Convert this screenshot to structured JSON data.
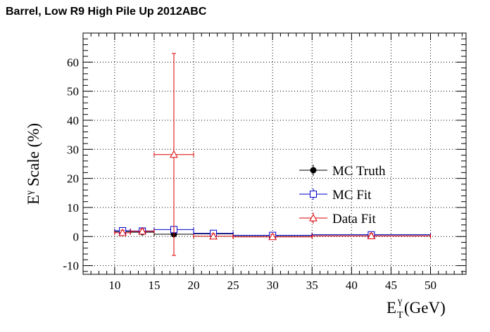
{
  "chart_data": {
    "type": "scatter",
    "title": "Barrel, Low R9 High Pile Up 2012ABC",
    "xlabel": {
      "base": "E",
      "sub": "T",
      "sup": "γ",
      "unit": " (GeV)"
    },
    "ylabel": {
      "base": "E",
      "sup": "γ",
      "rest": " Scale (%)"
    },
    "xlim": [
      6,
      54.5
    ],
    "ylim": [
      -13,
      70
    ],
    "xticks": [
      10,
      15,
      20,
      25,
      30,
      35,
      40,
      45,
      50
    ],
    "yticks": [
      -10,
      0,
      10,
      20,
      30,
      40,
      50,
      60
    ],
    "grid": true,
    "legend_position": "center-right",
    "series": [
      {
        "name": "MC Truth",
        "marker": "circle-filled",
        "color": "#000000",
        "points": [
          {
            "x": 11,
            "xlo": 10,
            "xhi": 12,
            "y": 1.7,
            "ylo": 1.2,
            "yhi": 2.2
          },
          {
            "x": 13.5,
            "xlo": 12,
            "xhi": 15,
            "y": 1.5,
            "ylo": 1.0,
            "yhi": 2.0
          },
          {
            "x": 17.5,
            "xlo": 15,
            "xhi": 20,
            "y": 0.8,
            "ylo": 0.3,
            "yhi": 1.3
          },
          {
            "x": 22.5,
            "xlo": 20,
            "xhi": 25,
            "y": 0.9,
            "ylo": 0.4,
            "yhi": 1.4
          },
          {
            "x": 30,
            "xlo": 25,
            "xhi": 35,
            "y": 0.3,
            "ylo": -0.2,
            "yhi": 0.8
          },
          {
            "x": 42.5,
            "xlo": 35,
            "xhi": 50,
            "y": 0.6,
            "ylo": 0.1,
            "yhi": 1.1
          }
        ]
      },
      {
        "name": "MC Fit",
        "marker": "square-open",
        "color": "#0000cc",
        "points": [
          {
            "x": 11,
            "xlo": 10,
            "xhi": 12,
            "y": 2.0,
            "ylo": 1.3,
            "yhi": 2.7
          },
          {
            "x": 13.5,
            "xlo": 12,
            "xhi": 15,
            "y": 1.9,
            "ylo": 1.2,
            "yhi": 2.6
          },
          {
            "x": 17.5,
            "xlo": 15,
            "xhi": 20,
            "y": 2.4,
            "ylo": 1.7,
            "yhi": 3.1
          },
          {
            "x": 22.5,
            "xlo": 20,
            "xhi": 25,
            "y": 1.1,
            "ylo": 0.4,
            "yhi": 1.8
          },
          {
            "x": 30,
            "xlo": 25,
            "xhi": 35,
            "y": 0.4,
            "ylo": -0.3,
            "yhi": 1.1
          },
          {
            "x": 42.5,
            "xlo": 35,
            "xhi": 50,
            "y": 0.6,
            "ylo": -0.1,
            "yhi": 1.3
          }
        ]
      },
      {
        "name": "Data Fit",
        "marker": "triangle-open",
        "color": "#dd0000",
        "points": [
          {
            "x": 11,
            "xlo": 10,
            "xhi": 12,
            "y": 1.3,
            "ylo": 0.5,
            "yhi": 2.1
          },
          {
            "x": 13.5,
            "xlo": 12,
            "xhi": 15,
            "y": 1.8,
            "ylo": 1.0,
            "yhi": 2.6
          },
          {
            "x": 17.5,
            "xlo": 15,
            "xhi": 20,
            "y": 28.2,
            "ylo": -6.5,
            "yhi": 63
          },
          {
            "x": 22.5,
            "xlo": 20,
            "xhi": 25,
            "y": 0.1,
            "ylo": -0.7,
            "yhi": 0.9
          },
          {
            "x": 30,
            "xlo": 25,
            "xhi": 35,
            "y": -0.1,
            "ylo": -0.9,
            "yhi": 0.7
          },
          {
            "x": 42.5,
            "xlo": 35,
            "xhi": 50,
            "y": 0.2,
            "ylo": -0.6,
            "yhi": 1.0
          }
        ]
      }
    ]
  }
}
